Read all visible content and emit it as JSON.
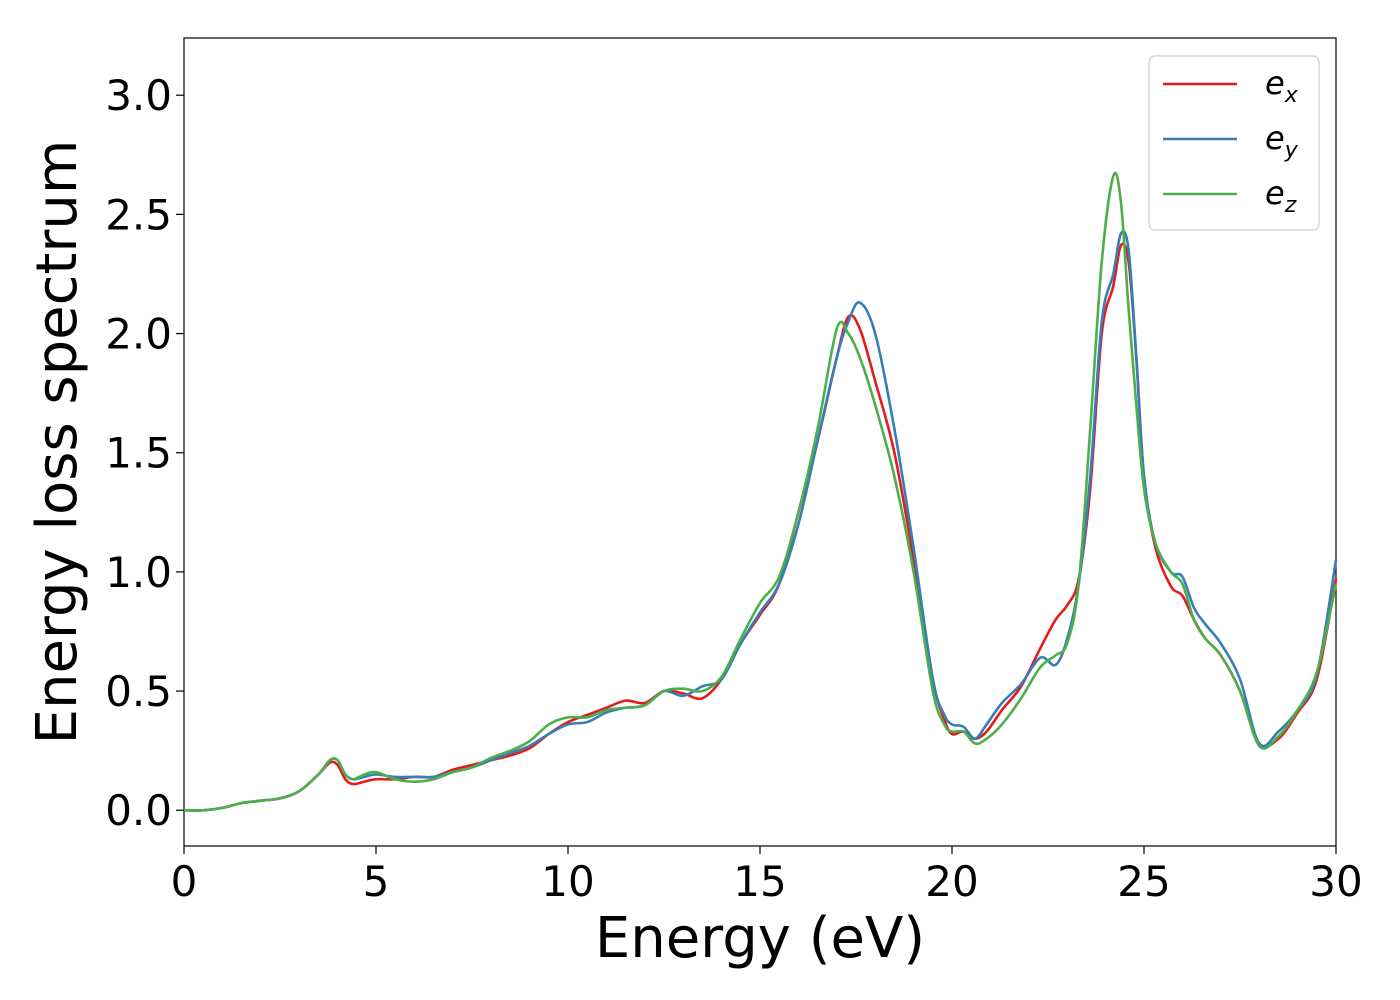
{
  "chart_data": {
    "type": "line",
    "title": "",
    "xlabel": "Energy (eV)",
    "ylabel": "Energy loss spectrum",
    "xlim": [
      0,
      30
    ],
    "ylim": [
      -0.15,
      3.24
    ],
    "xticks": [
      0,
      5,
      10,
      15,
      20,
      25,
      30
    ],
    "xtick_labels": [
      "0",
      "5",
      "10",
      "15",
      "20",
      "25",
      "30"
    ],
    "yticks": [
      0.0,
      0.5,
      1.0,
      1.5,
      2.0,
      2.5,
      3.0
    ],
    "ytick_labels": [
      "0.0",
      "0.5",
      "1.0",
      "1.5",
      "2.0",
      "2.5",
      "3.0"
    ],
    "grid": false,
    "legend_position": "top-right",
    "series": [
      {
        "name": "e_x",
        "legend_base": "e",
        "legend_sub": "x",
        "color": "#e41a1c",
        "x": [
          0,
          0.5,
          1,
          1.5,
          2,
          2.5,
          3,
          3.5,
          3.8,
          4,
          4.2,
          4.4,
          4.7,
          5,
          5.5,
          6,
          6.5,
          7,
          7.5,
          8,
          8.5,
          9,
          9.5,
          10,
          10.5,
          11,
          11.5,
          12,
          12.5,
          13,
          13.5,
          14,
          14.5,
          15,
          15.5,
          16,
          16.5,
          17,
          17.3,
          17.6,
          18,
          18.5,
          19,
          19.5,
          19.8,
          20,
          20.3,
          20.6,
          20.9,
          21.3,
          21.8,
          22.3,
          22.7,
          23,
          23.3,
          23.6,
          23.9,
          24.2,
          24.4,
          24.6,
          24.8,
          25,
          25.3,
          25.7,
          26,
          26.3,
          26.6,
          27,
          27.5,
          28,
          28.5,
          29,
          29.5,
          30
        ],
        "y": [
          0,
          0,
          0.01,
          0.03,
          0.04,
          0.05,
          0.08,
          0.15,
          0.2,
          0.19,
          0.13,
          0.11,
          0.12,
          0.13,
          0.13,
          0.14,
          0.14,
          0.17,
          0.19,
          0.21,
          0.23,
          0.26,
          0.32,
          0.37,
          0.4,
          0.43,
          0.46,
          0.45,
          0.5,
          0.49,
          0.47,
          0.55,
          0.7,
          0.82,
          0.95,
          1.25,
          1.55,
          1.9,
          2.07,
          2.02,
          1.8,
          1.5,
          1.05,
          0.55,
          0.38,
          0.32,
          0.33,
          0.3,
          0.33,
          0.42,
          0.52,
          0.68,
          0.8,
          0.86,
          0.97,
          1.35,
          2.0,
          2.2,
          2.37,
          2.3,
          1.9,
          1.4,
          1.1,
          0.94,
          0.9,
          0.8,
          0.72,
          0.65,
          0.5,
          0.28,
          0.3,
          0.41,
          0.55,
          0.97
        ]
      },
      {
        "name": "e_y",
        "legend_base": "e",
        "legend_sub": "y",
        "color": "#377eb8",
        "x": [
          0,
          0.5,
          1,
          1.5,
          2,
          2.5,
          3,
          3.5,
          3.8,
          4,
          4.2,
          4.4,
          4.7,
          5,
          5.5,
          6,
          6.5,
          7,
          7.5,
          8,
          8.5,
          9,
          9.5,
          10,
          10.5,
          11,
          11.5,
          12,
          12.5,
          13,
          13.5,
          14,
          14.5,
          15,
          15.5,
          16,
          16.5,
          17,
          17.3,
          17.6,
          18,
          18.5,
          19,
          19.5,
          19.8,
          20,
          20.3,
          20.6,
          20.9,
          21.3,
          21.8,
          22.3,
          22.7,
          23,
          23.3,
          23.6,
          23.9,
          24.2,
          24.4,
          24.6,
          24.8,
          25,
          25.3,
          25.7,
          26,
          26.3,
          26.6,
          27,
          27.5,
          28,
          28.5,
          29,
          29.5,
          30
        ],
        "y": [
          0,
          0,
          0.01,
          0.03,
          0.04,
          0.05,
          0.08,
          0.15,
          0.21,
          0.21,
          0.15,
          0.13,
          0.14,
          0.15,
          0.14,
          0.14,
          0.14,
          0.16,
          0.18,
          0.21,
          0.24,
          0.27,
          0.32,
          0.36,
          0.37,
          0.41,
          0.43,
          0.44,
          0.5,
          0.48,
          0.52,
          0.55,
          0.7,
          0.83,
          0.95,
          1.2,
          1.55,
          1.9,
          2.05,
          2.13,
          2.0,
          1.6,
          1.1,
          0.55,
          0.4,
          0.36,
          0.35,
          0.3,
          0.36,
          0.45,
          0.53,
          0.64,
          0.61,
          0.72,
          0.95,
          1.4,
          2.05,
          2.25,
          2.42,
          2.35,
          1.9,
          1.4,
          1.12,
          1.0,
          0.98,
          0.85,
          0.78,
          0.7,
          0.55,
          0.28,
          0.33,
          0.42,
          0.57,
          1.05
        ]
      },
      {
        "name": "e_z",
        "legend_base": "e",
        "legend_sub": "z",
        "color": "#4daf4a",
        "x": [
          0,
          0.5,
          1,
          1.5,
          2,
          2.5,
          3,
          3.5,
          3.8,
          4,
          4.2,
          4.4,
          4.7,
          5,
          5.5,
          6,
          6.5,
          7,
          7.5,
          8,
          8.5,
          9,
          9.5,
          10,
          10.5,
          11,
          11.5,
          12,
          12.5,
          13,
          13.5,
          14,
          14.5,
          15,
          15.5,
          16,
          16.5,
          17,
          17.3,
          17.6,
          18,
          18.5,
          19,
          19.5,
          19.8,
          20,
          20.3,
          20.6,
          20.9,
          21.3,
          21.8,
          22.3,
          22.7,
          23,
          23.3,
          23.6,
          23.9,
          24.2,
          24.4,
          24.6,
          24.8,
          25,
          25.3,
          25.7,
          26,
          26.3,
          26.6,
          27,
          27.5,
          28,
          28.5,
          29,
          29.5,
          30
        ],
        "y": [
          0,
          0,
          0.01,
          0.03,
          0.04,
          0.05,
          0.08,
          0.15,
          0.21,
          0.21,
          0.15,
          0.13,
          0.15,
          0.16,
          0.13,
          0.12,
          0.13,
          0.16,
          0.18,
          0.22,
          0.25,
          0.29,
          0.36,
          0.39,
          0.39,
          0.42,
          0.43,
          0.44,
          0.5,
          0.51,
          0.5,
          0.56,
          0.72,
          0.87,
          0.98,
          1.25,
          1.6,
          2.02,
          2.0,
          1.9,
          1.7,
          1.4,
          1.0,
          0.5,
          0.36,
          0.33,
          0.33,
          0.28,
          0.3,
          0.36,
          0.47,
          0.6,
          0.65,
          0.7,
          0.95,
          1.6,
          2.3,
          2.66,
          2.55,
          2.1,
          1.7,
          1.35,
          1.12,
          1.0,
          0.95,
          0.8,
          0.72,
          0.65,
          0.5,
          0.27,
          0.31,
          0.42,
          0.58,
          0.95
        ]
      }
    ]
  }
}
